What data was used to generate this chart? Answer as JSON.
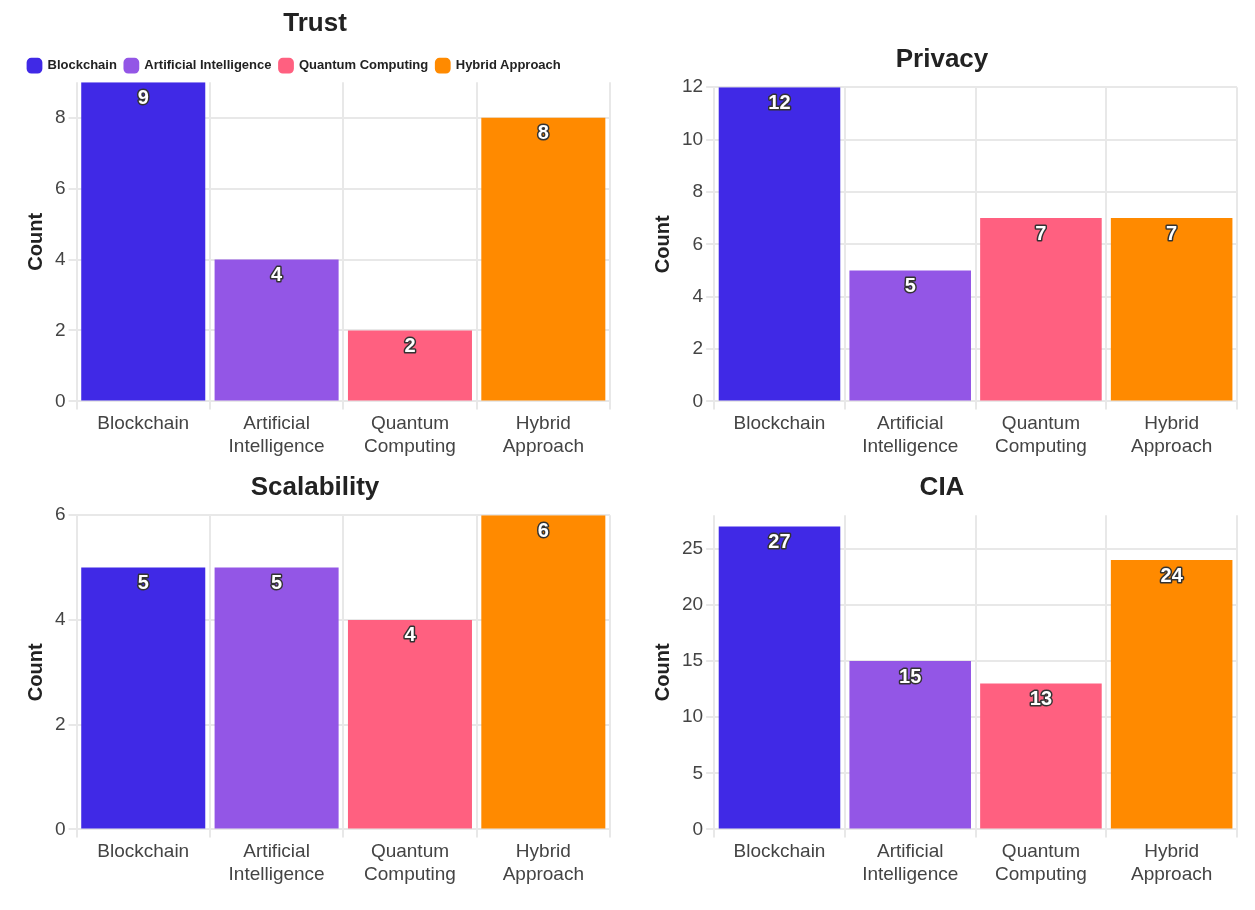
{
  "chart_data": [
    {
      "type": "bar",
      "title": "Trust",
      "ylabel": "Count",
      "categories": [
        "Blockchain",
        "Artificial Intelligence",
        "Quantum Computing",
        "Hybrid Approach"
      ],
      "series": [
        {
          "name": "Blockchain",
          "color": "#4029e6",
          "values": [
            9,
            null,
            null,
            null
          ]
        },
        {
          "name": "Artificial Intelligence",
          "color": "#9356e6",
          "values": [
            null,
            4,
            null,
            null
          ]
        },
        {
          "name": "Quantum Computing",
          "color": "#ff6080",
          "values": [
            null,
            null,
            2,
            null
          ]
        },
        {
          "name": "Hybrid Approach",
          "color": "#ff8a00",
          "values": [
            null,
            null,
            null,
            8
          ]
        }
      ],
      "ylim": [
        0,
        9
      ],
      "yticks": [
        0,
        2,
        4,
        6,
        8
      ],
      "grid": true,
      "data_labels": true,
      "legend": "top left"
    },
    {
      "type": "bar",
      "title": "Privacy",
      "ylabel": "Count",
      "categories": [
        "Blockchain",
        "Artificial Intelligence",
        "Quantum Computing",
        "Hybrid Approach"
      ],
      "series": [
        {
          "color": "#4029e6",
          "values": [
            12,
            null,
            null,
            null
          ]
        },
        {
          "color": "#9356e6",
          "values": [
            null,
            5,
            null,
            null
          ]
        },
        {
          "color": "#ff6080",
          "values": [
            null,
            null,
            7,
            null
          ]
        },
        {
          "color": "#ff8a00",
          "values": [
            null,
            null,
            null,
            7
          ]
        }
      ],
      "ylim": [
        0,
        12
      ],
      "yticks": [
        0,
        2,
        4,
        6,
        8,
        10,
        12
      ],
      "grid": true,
      "data_labels": true
    },
    {
      "type": "bar",
      "title": "Scalability",
      "ylabel": "Count",
      "categories": [
        "Blockchain",
        "Artificial Intelligence",
        "Quantum Computing",
        "Hybrid Approach"
      ],
      "series": [
        {
          "color": "#4029e6",
          "values": [
            5,
            null,
            null,
            null
          ]
        },
        {
          "color": "#9356e6",
          "values": [
            null,
            5,
            null,
            null
          ]
        },
        {
          "color": "#ff6080",
          "values": [
            null,
            null,
            4,
            null
          ]
        },
        {
          "color": "#ff8a00",
          "values": [
            null,
            null,
            null,
            6
          ]
        }
      ],
      "ylim": [
        0,
        6
      ],
      "yticks": [
        0,
        2,
        4,
        6
      ],
      "grid": true,
      "data_labels": true
    },
    {
      "type": "bar",
      "title": "CIA",
      "ylabel": "Count",
      "categories": [
        "Blockchain",
        "Artificial Intelligence",
        "Quantum Computing",
        "Hybrid Approach"
      ],
      "series": [
        {
          "color": "#4029e6",
          "values": [
            27,
            null,
            null,
            null
          ]
        },
        {
          "color": "#9356e6",
          "values": [
            null,
            15,
            null,
            null
          ]
        },
        {
          "color": "#ff6080",
          "values": [
            null,
            null,
            13,
            null
          ]
        },
        {
          "color": "#ff8a00",
          "values": [
            null,
            null,
            null,
            24
          ]
        }
      ],
      "ylim": [
        0,
        28
      ],
      "yticks": [
        0,
        5,
        10,
        15,
        20,
        25
      ],
      "grid": true,
      "data_labels": true
    }
  ]
}
